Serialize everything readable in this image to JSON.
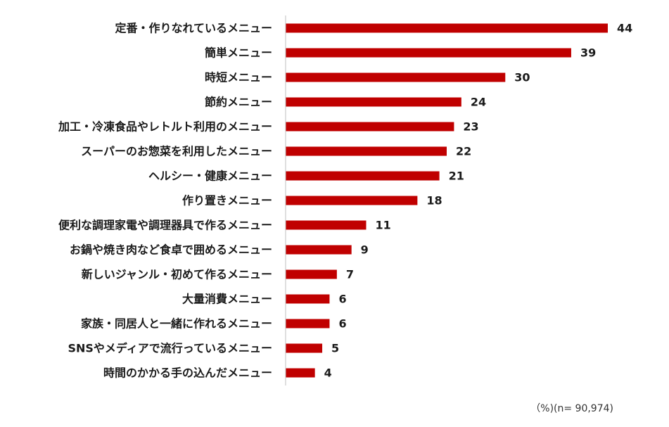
{
  "chart_data": {
    "type": "bar",
    "orientation": "horizontal",
    "categories": [
      "定番・作りなれているメニュー",
      "簡単メニュー",
      "時短メニュー",
      "節約メニュー",
      "加工・冷凍食品やレトルト利用のメニュー",
      "スーパーのお惣菜を利用したメニュー",
      "ヘルシー・健康メニュー",
      "作り置きメニュー",
      "便利な調理家電や調理器具で作るメニュー",
      "お鍋や焼き肉など食卓で囲めるメニュー",
      "新しいジャンル・初めて作るメニュー",
      "大量消費メニュー",
      "家族・同居人と一緒に作れるメニュー",
      "SNSやメディアで流行っているメニュー",
      "時間のかかる手の込んだメニュー"
    ],
    "values": [
      44,
      39,
      30,
      24,
      23,
      22,
      21,
      18,
      11,
      9,
      7,
      6,
      6,
      5,
      4
    ],
    "xlim": [
      0,
      44
    ],
    "bar_color": "#c00000",
    "axis_color": "#bfbfbf",
    "grid": false,
    "note": "（%)(n= 90,974)"
  }
}
